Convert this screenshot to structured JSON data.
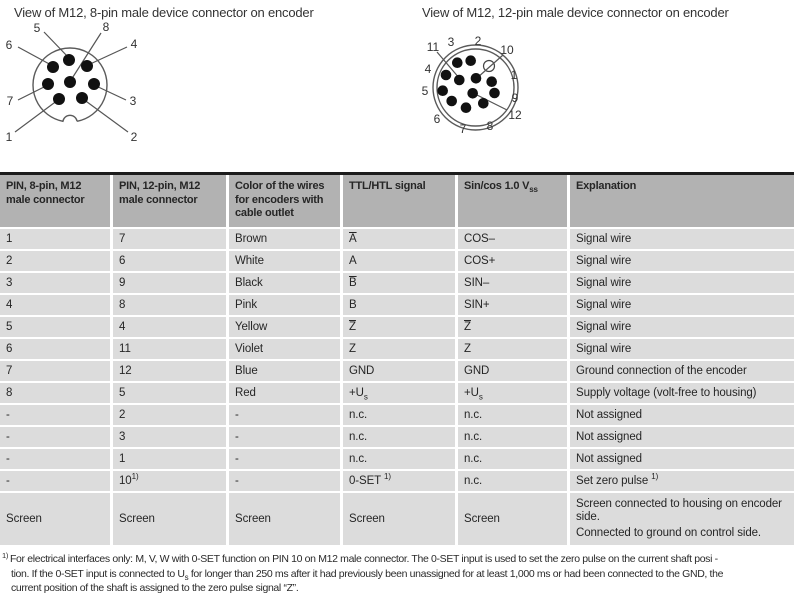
{
  "diagrams": {
    "left_title": "View of M12, 8-pin male device connector on encoder",
    "right_title": "View of M12, 12-pin male device connector on encoder",
    "connector8_labels": [
      "5",
      "8",
      "6",
      "4",
      "7",
      "3",
      "1",
      "2"
    ],
    "connector12_labels": [
      "11",
      "3",
      "2",
      "10",
      "4",
      "1",
      "5",
      "9",
      "6",
      "12",
      "7",
      "8"
    ]
  },
  "table": {
    "headers": [
      {
        "t": "PIN, 8-pin, M12 male connector"
      },
      {
        "t": "PIN, 12-pin, M12 male connector"
      },
      {
        "t": "Color of the wires for encoders with cable outlet"
      },
      {
        "t": "TTL/HTL signal"
      },
      {
        "t": "Sin/cos 1.0 V",
        "sub": "ss"
      },
      {
        "t": "Explanation"
      }
    ],
    "rows": [
      [
        {
          "t": "1"
        },
        {
          "t": "7"
        },
        {
          "t": "Brown"
        },
        {
          "t": "A",
          "over": true
        },
        {
          "t": "COS–"
        },
        {
          "t": "Signal wire"
        }
      ],
      [
        {
          "t": "2"
        },
        {
          "t": "6"
        },
        {
          "t": "White"
        },
        {
          "t": "A"
        },
        {
          "t": "COS+"
        },
        {
          "t": "Signal wire"
        }
      ],
      [
        {
          "t": "3"
        },
        {
          "t": "9"
        },
        {
          "t": "Black"
        },
        {
          "t": "B",
          "over": true
        },
        {
          "t": "SIN–"
        },
        {
          "t": "Signal wire"
        }
      ],
      [
        {
          "t": "4"
        },
        {
          "t": "8"
        },
        {
          "t": "Pink"
        },
        {
          "t": "B"
        },
        {
          "t": "SIN+"
        },
        {
          "t": "Signal wire"
        }
      ],
      [
        {
          "t": "5"
        },
        {
          "t": "4"
        },
        {
          "t": "Yellow"
        },
        {
          "t": "Z",
          "over": true
        },
        {
          "t": "Z",
          "over": true
        },
        {
          "t": "Signal wire"
        }
      ],
      [
        {
          "t": "6"
        },
        {
          "t": "11"
        },
        {
          "t": "Violet"
        },
        {
          "t": "Z"
        },
        {
          "t": "Z"
        },
        {
          "t": "Signal wire"
        }
      ],
      [
        {
          "t": "7"
        },
        {
          "t": "12"
        },
        {
          "t": "Blue"
        },
        {
          "t": "GND"
        },
        {
          "t": "GND"
        },
        {
          "t": "Ground connection of the encoder"
        }
      ],
      [
        {
          "t": "8"
        },
        {
          "t": "5"
        },
        {
          "t": "Red"
        },
        {
          "t": "+U",
          "sub": "s"
        },
        {
          "t": "+U",
          "sub": "s"
        },
        {
          "t": "Supply voltage (volt-free to housing)"
        }
      ],
      [
        {
          "t": "-"
        },
        {
          "t": "2"
        },
        {
          "t": "-"
        },
        {
          "t": "n.c."
        },
        {
          "t": "n.c."
        },
        {
          "t": "Not assigned"
        }
      ],
      [
        {
          "t": "-"
        },
        {
          "t": "3"
        },
        {
          "t": "-"
        },
        {
          "t": "n.c."
        },
        {
          "t": "n.c."
        },
        {
          "t": "Not assigned"
        }
      ],
      [
        {
          "t": "-"
        },
        {
          "t": "1"
        },
        {
          "t": "-"
        },
        {
          "t": "n.c."
        },
        {
          "t": "n.c."
        },
        {
          "t": "Not assigned"
        }
      ],
      [
        {
          "t": "-"
        },
        {
          "t": "10",
          "sup": "1)"
        },
        {
          "t": "-"
        },
        {
          "t": "0-SET ",
          "sup": "1)"
        },
        {
          "t": "n.c."
        },
        {
          "t": "Set zero pulse ",
          "sup": "1)"
        }
      ],
      [
        {
          "t": "Screen"
        },
        {
          "t": "Screen"
        },
        {
          "t": "Screen"
        },
        {
          "t": "Screen"
        },
        {
          "t": "Screen"
        },
        {
          "lines": [
            "Screen connected to housing on encoder side.",
            "Connected to ground on control side."
          ]
        }
      ]
    ]
  },
  "footnote": {
    "marker": "1)",
    "line1": "For electrical interfaces only: M, V, W with 0-SET function on PIN 10 on M12 male connector. The 0-SET input is used to set the zero pulse on the current shaft posi -",
    "line2a": "tion. If the 0-SET input is connected to U",
    "line2sub": "s",
    "line2b": " for longer than 250 ms after it had previously been unassigned for at least 1,000 ms or had been connected to the GND, the",
    "line3": "current position of the shaft is assigned to the zero pulse signal “Z”."
  },
  "colors": {
    "header_bg": "#b2b2b2",
    "row_bg": "#dcdcdc",
    "table_top_border": "#1c1c1c",
    "text": "#262626",
    "diagram_stroke": "#5a5a5a",
    "pin_fill": "#111111"
  }
}
